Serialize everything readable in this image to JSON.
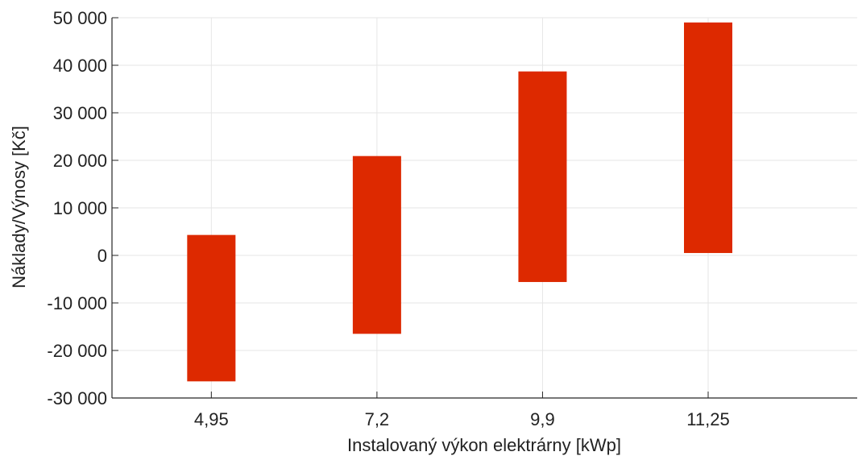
{
  "chart_data": {
    "type": "bar",
    "subtype": "floating-range",
    "title": "",
    "xlabel": "Instalovaný výkon elektrárny [kWp]",
    "ylabel": "Náklady/Výnosy [Kč]",
    "categories": [
      "4,95",
      "7,2",
      "9,9",
      "11,25"
    ],
    "series": [
      {
        "ranges": [
          [
            -26500,
            4300
          ],
          [
            -16500,
            20900
          ],
          [
            -5600,
            38700
          ],
          [
            500,
            49000
          ]
        ]
      }
    ],
    "ylim": [
      -30000,
      50000
    ],
    "yticks": [
      -30000,
      -20000,
      -10000,
      0,
      10000,
      20000,
      30000,
      40000,
      50000
    ],
    "ytick_labels": [
      "-30 000",
      "-20 000",
      "-10 000",
      "0",
      "10 000",
      "20 000",
      "30 000",
      "40 000",
      "50 000"
    ],
    "grid": true,
    "legend": "none",
    "bar_color": "#dd2900",
    "grid_color": "#e6e6e6",
    "axis_color": "#262626"
  }
}
